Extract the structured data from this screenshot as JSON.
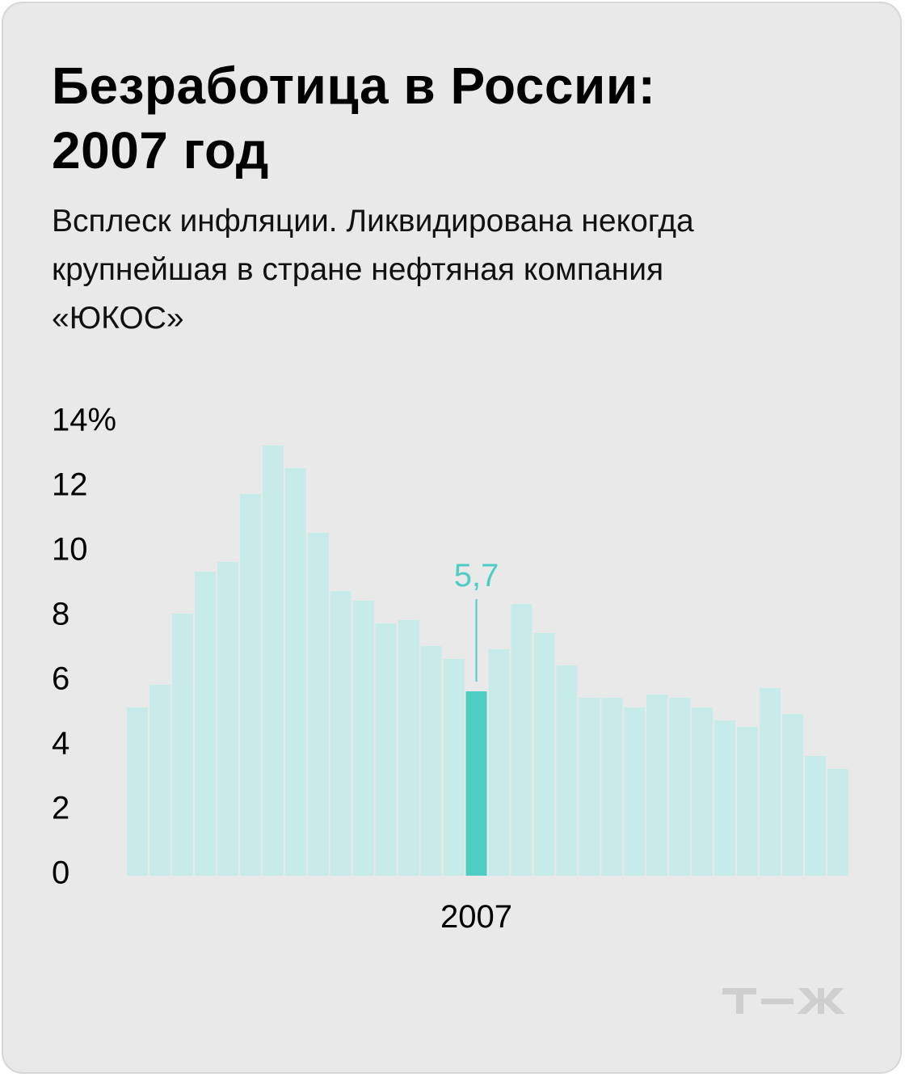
{
  "title_lines": [
    "Безработица в России:",
    "2007 год"
  ],
  "subtitle_lines": [
    "Всплеск инфляции. Ликвидирована некогда",
    "крупнейшая в стране нефтяная компания",
    "«ЮКОС»"
  ],
  "logo": {
    "text": "т—ж",
    "color": "#cfcfcf"
  },
  "colors": {
    "bar": "#c7ebe8",
    "highlight": "#4ecdc4",
    "background": "#e9e9e9"
  },
  "chart_data": {
    "type": "bar",
    "ylim": [
      0,
      14
    ],
    "yticks": [
      0,
      2,
      4,
      6,
      8,
      10,
      12,
      14
    ],
    "ytick_labels": [
      "0",
      "2",
      "4",
      "6",
      "8",
      "10",
      "12",
      "14%"
    ],
    "values": [
      5.2,
      5.9,
      8.1,
      9.4,
      9.7,
      11.8,
      13.3,
      12.6,
      10.6,
      8.8,
      8.5,
      7.8,
      7.9,
      7.1,
      6.7,
      5.7,
      7.0,
      8.4,
      7.5,
      6.5,
      5.5,
      5.5,
      5.2,
      5.6,
      5.5,
      5.2,
      4.8,
      4.6,
      5.8,
      5.0,
      3.7,
      3.3
    ],
    "highlight_index": 15,
    "x_label": "2007",
    "annotation": {
      "index": 15,
      "text": "5,7"
    },
    "grid": false,
    "legend": "none"
  }
}
